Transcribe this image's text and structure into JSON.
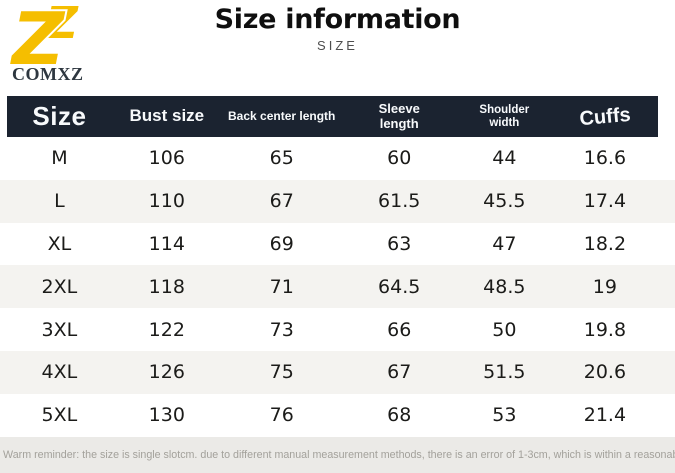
{
  "brand": {
    "name": "COMXZ",
    "logo_glyph": "Z"
  },
  "header": {
    "title": "Size information",
    "subtitle": "SIZE"
  },
  "chart_data": {
    "type": "table",
    "title": "Size information",
    "columns": [
      "Size",
      "Bust size",
      "Back center length",
      "Sleeve length",
      "Shoulder width",
      "Cuffs"
    ],
    "rows": [
      [
        "M",
        "106",
        "65",
        "60",
        "44",
        "16.6"
      ],
      [
        "L",
        "110",
        "67",
        "61.5",
        "45.5",
        "17.4"
      ],
      [
        "XL",
        "114",
        "69",
        "63",
        "47",
        "18.2"
      ],
      [
        "2XL",
        "118",
        "71",
        "64.5",
        "48.5",
        "19"
      ],
      [
        "3XL",
        "122",
        "73",
        "66",
        "50",
        "19.8"
      ],
      [
        "4XL",
        "126",
        "75",
        "67",
        "51.5",
        "20.6"
      ],
      [
        "5XL",
        "130",
        "76",
        "68",
        "53",
        "21.4"
      ]
    ],
    "units": "cm"
  },
  "footer": {
    "note": "Warm reminder: the size is single slotcm. due to different manual measurement methods, there is an error of 1-3cm, which is within a reasonable range"
  },
  "colors": {
    "accent_gold": "#F5BE00",
    "header_bg": "#1B2330",
    "row_alt_bg": "#F4F3F0",
    "footer_bg": "#EBEAE7"
  }
}
